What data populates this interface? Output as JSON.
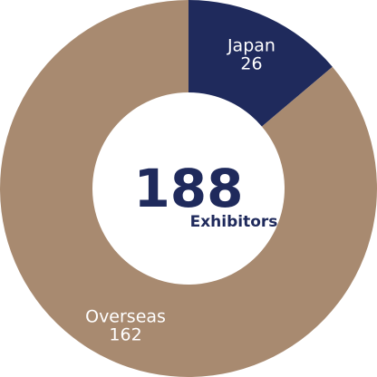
{
  "chart_data": {
    "type": "pie",
    "variant": "donut",
    "categories": [
      "Japan",
      "Overseas"
    ],
    "values": [
      26,
      162
    ],
    "value_labels": [
      "26",
      "162"
    ],
    "colors": [
      "#1f2a5c",
      "#a88a70"
    ],
    "start_angle_deg": 0,
    "direction": "clockwise",
    "center_total": "188",
    "center_caption": "Exhibitors"
  }
}
